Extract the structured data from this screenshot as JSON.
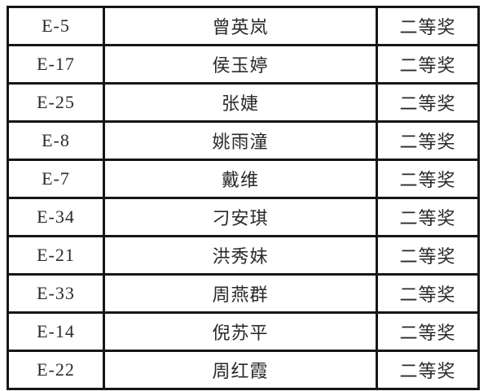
{
  "page": {
    "background": "#ffffff"
  },
  "table": {
    "border_color": "#161616",
    "text_color": "#2a2a2a",
    "columns": [
      "code",
      "name",
      "award"
    ],
    "rows": [
      {
        "code": "E-5",
        "name": "曾英岚",
        "award": "二等奖"
      },
      {
        "code": "E-17",
        "name": "侯玉婷",
        "award": "二等奖"
      },
      {
        "code": "E-25",
        "name": "张婕",
        "award": "二等奖"
      },
      {
        "code": "E-8",
        "name": "姚雨潼",
        "award": "二等奖"
      },
      {
        "code": "E-7",
        "name": "戴维",
        "award": "二等奖"
      },
      {
        "code": "E-34",
        "name": "刁安琪",
        "award": "二等奖"
      },
      {
        "code": "E-21",
        "name": "洪秀妹",
        "award": "二等奖"
      },
      {
        "code": "E-33",
        "name": "周燕群",
        "award": "二等奖"
      },
      {
        "code": "E-14",
        "name": "倪苏平",
        "award": "二等奖"
      },
      {
        "code": "E-22",
        "name": "周红霞",
        "award": "二等奖"
      }
    ]
  }
}
